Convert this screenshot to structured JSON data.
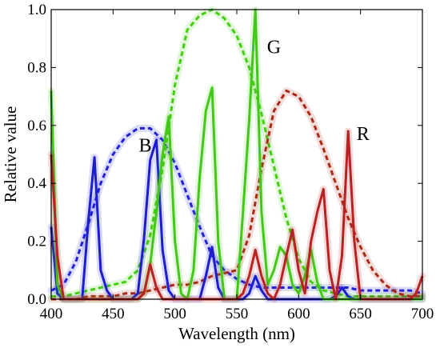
{
  "chart_data": {
    "type": "line",
    "xlabel": "Wavelength (nm)",
    "ylabel": "Relative value",
    "xlim": [
      400,
      700
    ],
    "ylim": [
      0,
      1.0
    ],
    "xticks": [
      400,
      450,
      500,
      550,
      600,
      650,
      700
    ],
    "yticks": [
      0,
      0.2,
      0.4,
      0.6,
      0.8,
      1.0
    ],
    "ytick_labels": [
      "0.0",
      "0.2",
      "0.4",
      "0.6",
      "0.8",
      "1.0"
    ],
    "grid": false,
    "annotations": [
      {
        "text": "B",
        "x": 476,
        "y": 0.51
      },
      {
        "text": "G",
        "x": 580,
        "y": 0.85
      },
      {
        "text": "R",
        "x": 652,
        "y": 0.55
      }
    ],
    "series": [
      {
        "color": "#2222dd",
        "style": "dashed",
        "x": [
          400,
          410,
          420,
          430,
          440,
          450,
          460,
          470,
          480,
          490,
          500,
          510,
          520,
          530,
          540,
          550,
          560,
          570,
          580,
          590,
          600,
          610,
          620,
          630,
          640,
          650,
          660,
          670,
          680,
          690,
          700
        ],
        "y": [
          0.03,
          0.05,
          0.13,
          0.26,
          0.4,
          0.5,
          0.56,
          0.59,
          0.59,
          0.55,
          0.47,
          0.36,
          0.25,
          0.15,
          0.1,
          0.07,
          0.05,
          0.04,
          0.04,
          0.04,
          0.04,
          0.04,
          0.04,
          0.04,
          0.04,
          0.03,
          0.03,
          0.03,
          0.03,
          0.03,
          0.02
        ]
      },
      {
        "color": "#44cc11",
        "style": "dashed",
        "x": [
          400,
          410,
          420,
          430,
          440,
          450,
          460,
          470,
          480,
          490,
          500,
          510,
          520,
          530,
          540,
          550,
          560,
          570,
          580,
          590,
          600,
          610,
          620,
          630,
          640,
          650,
          660,
          670,
          680,
          690,
          700
        ],
        "y": [
          0.01,
          0.01,
          0.02,
          0.03,
          0.04,
          0.05,
          0.06,
          0.1,
          0.22,
          0.45,
          0.74,
          0.93,
          0.98,
          1.0,
          0.97,
          0.91,
          0.8,
          0.64,
          0.46,
          0.28,
          0.14,
          0.06,
          0.03,
          0.02,
          0.01,
          0.01,
          0.01,
          0.01,
          0.01,
          0.01,
          0.01
        ]
      },
      {
        "color": "#aa2a18",
        "style": "dashed",
        "x": [
          400,
          410,
          420,
          430,
          440,
          450,
          460,
          470,
          480,
          490,
          500,
          510,
          520,
          530,
          540,
          550,
          560,
          570,
          580,
          590,
          600,
          610,
          620,
          630,
          640,
          650,
          660,
          670,
          680,
          690,
          700
        ],
        "y": [
          0.0,
          0.0,
          0.0,
          0.01,
          0.01,
          0.01,
          0.02,
          0.02,
          0.03,
          0.04,
          0.05,
          0.05,
          0.06,
          0.08,
          0.09,
          0.1,
          0.22,
          0.45,
          0.65,
          0.72,
          0.7,
          0.63,
          0.52,
          0.4,
          0.28,
          0.18,
          0.1,
          0.05,
          0.02,
          0.01,
          0.01
        ]
      },
      {
        "color": "#1c1cd0",
        "style": "solid",
        "x": [
          400,
          405,
          410,
          415,
          420,
          425,
          430,
          435,
          440,
          445,
          450,
          455,
          460,
          465,
          470,
          475,
          480,
          485,
          490,
          495,
          500,
          505,
          510,
          515,
          520,
          525,
          530,
          535,
          540,
          545,
          550,
          555,
          560,
          565,
          570,
          575,
          580,
          585,
          590,
          595,
          600,
          605,
          610,
          615,
          620,
          625,
          630,
          635,
          640,
          645,
          650,
          655,
          660,
          665,
          670,
          675,
          680,
          685,
          690,
          695,
          700
        ],
        "y": [
          0.25,
          0.02,
          0.0,
          0.0,
          0.0,
          0.0,
          0.27,
          0.49,
          0.1,
          0.03,
          0.0,
          0.0,
          0.0,
          0.0,
          0.02,
          0.21,
          0.48,
          0.55,
          0.17,
          0.03,
          0.0,
          0.0,
          0.0,
          0.0,
          0.0,
          0.08,
          0.18,
          0.04,
          0.0,
          0.0,
          0.0,
          0.0,
          0.02,
          0.08,
          0.03,
          0.0,
          0.0,
          0.0,
          0.0,
          0.0,
          0.0,
          0.0,
          0.0,
          0.0,
          0.0,
          0.0,
          0.01,
          0.04,
          0.01,
          0.0,
          0.0,
          0.0,
          0.0,
          0.0,
          0.0,
          0.0,
          0.0,
          0.0,
          0.0,
          0.0,
          0.0
        ]
      },
      {
        "color": "#44c818",
        "style": "solid",
        "x": [
          400,
          405,
          410,
          415,
          420,
          425,
          430,
          435,
          440,
          445,
          450,
          455,
          460,
          465,
          470,
          475,
          480,
          485,
          490,
          495,
          500,
          505,
          510,
          515,
          520,
          525,
          530,
          535,
          540,
          545,
          550,
          555,
          560,
          565,
          570,
          575,
          580,
          585,
          590,
          595,
          600,
          605,
          610,
          615,
          620,
          625,
          630,
          635,
          640,
          645,
          650,
          655,
          660,
          665,
          670,
          675,
          680,
          685,
          690,
          695,
          700
        ],
        "y": [
          0.72,
          0.05,
          0.0,
          0.0,
          0.0,
          0.0,
          0.0,
          0.0,
          0.0,
          0.0,
          0.0,
          0.0,
          0.0,
          0.0,
          0.0,
          0.02,
          0.12,
          0.3,
          0.5,
          0.63,
          0.2,
          0.02,
          0.0,
          0.1,
          0.42,
          0.65,
          0.73,
          0.2,
          0.0,
          0.0,
          0.0,
          0.3,
          0.62,
          1.0,
          0.3,
          0.05,
          0.1,
          0.18,
          0.15,
          0.05,
          0.02,
          0.08,
          0.17,
          0.06,
          0.0,
          0.0,
          0.0,
          0.0,
          0.0,
          0.0,
          0.0,
          0.0,
          0.0,
          0.0,
          0.0,
          0.0,
          0.0,
          0.0,
          0.0,
          0.0,
          0.0
        ]
      },
      {
        "color": "#b82222",
        "style": "solid",
        "x": [
          400,
          405,
          410,
          415,
          420,
          425,
          430,
          435,
          440,
          445,
          450,
          455,
          460,
          465,
          470,
          475,
          480,
          485,
          490,
          495,
          500,
          505,
          510,
          515,
          520,
          525,
          530,
          535,
          540,
          545,
          550,
          555,
          560,
          565,
          570,
          575,
          580,
          585,
          590,
          595,
          600,
          605,
          610,
          615,
          620,
          625,
          630,
          635,
          640,
          645,
          650,
          655,
          660,
          665,
          670,
          675,
          680,
          685,
          690,
          695,
          700
        ],
        "y": [
          0.5,
          0.15,
          0.0,
          0.0,
          0.0,
          0.0,
          0.0,
          0.0,
          0.0,
          0.0,
          0.0,
          0.0,
          0.0,
          0.0,
          0.0,
          0.02,
          0.12,
          0.04,
          0.0,
          0.0,
          0.0,
          0.0,
          0.0,
          0.0,
          0.0,
          0.0,
          0.0,
          0.0,
          0.0,
          0.0,
          0.0,
          0.02,
          0.08,
          0.17,
          0.08,
          0.02,
          0.0,
          0.05,
          0.15,
          0.24,
          0.1,
          0.02,
          0.2,
          0.3,
          0.38,
          0.1,
          0.0,
          0.15,
          0.58,
          0.2,
          0.0,
          0.0,
          0.0,
          0.0,
          0.0,
          0.0,
          0.0,
          0.0,
          0.0,
          0.02,
          0.08
        ]
      }
    ]
  }
}
